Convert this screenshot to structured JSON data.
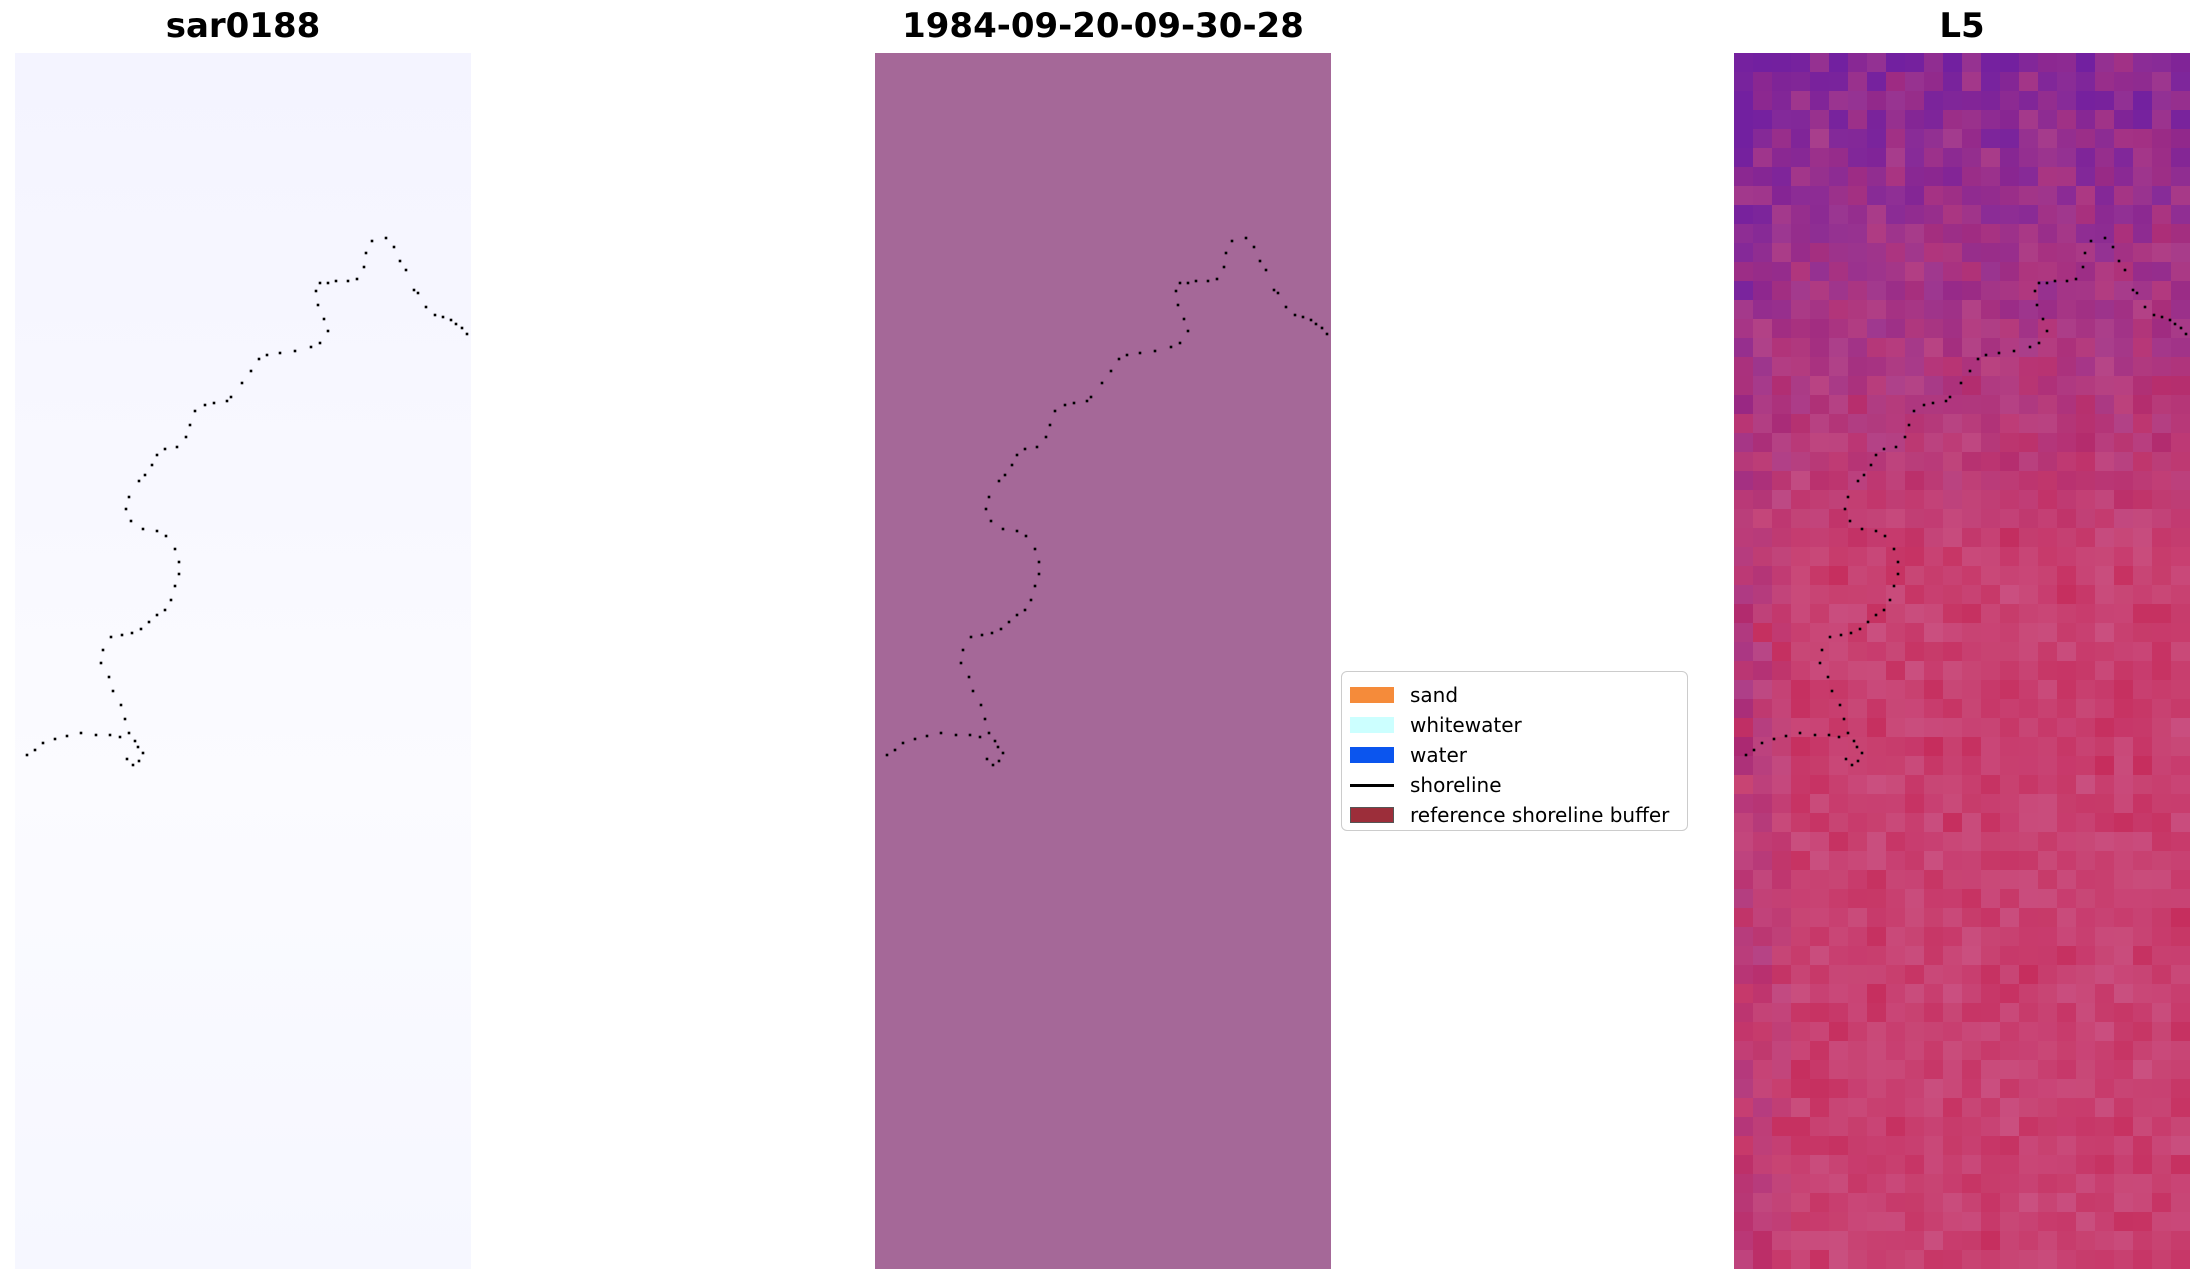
{
  "panels": [
    {
      "title": "sar0188"
    },
    {
      "title": "1984-09-20-09-30-28"
    },
    {
      "title": "L5"
    }
  ],
  "legend": {
    "items": [
      {
        "label": "sand",
        "color": "#f58b3a",
        "kind": "patch"
      },
      {
        "label": "whitewater",
        "color": "#ccffff",
        "kind": "patch"
      },
      {
        "label": "water",
        "color": "#0b55ee",
        "kind": "patch"
      },
      {
        "label": "shoreline",
        "color": "#000000",
        "kind": "line"
      },
      {
        "label": "reference shoreline buffer",
        "color": "#9c2e3a",
        "kind": "patch"
      }
    ]
  },
  "colors": {
    "left_background": "#f7f7ff",
    "middle_background": "#a56898",
    "right_base": "#c84a7f",
    "right_purple": "#7a2fa6"
  }
}
